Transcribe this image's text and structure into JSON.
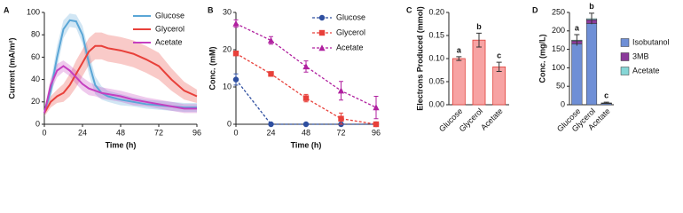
{
  "chart_data": [
    {
      "type": "line",
      "panel": "A",
      "xlabel": "Time (h)",
      "ylabel": "Current (mA/m²)",
      "x": [
        0,
        4,
        8,
        12,
        16,
        20,
        24,
        28,
        32,
        36,
        40,
        48,
        56,
        64,
        72,
        80,
        88,
        96
      ],
      "xlim": [
        0,
        96
      ],
      "xticks": [
        0,
        24,
        48,
        72,
        96
      ],
      "ylim": [
        0,
        100
      ],
      "yticks": [
        0,
        20,
        40,
        60,
        80,
        100
      ],
      "series": [
        {
          "name": "Glucose",
          "color": "#5aa6d6",
          "values": [
            10,
            30,
            60,
            85,
            93,
            92,
            80,
            55,
            35,
            28,
            25,
            22,
            20,
            18,
            17,
            16,
            15,
            15
          ],
          "errors": [
            3,
            8,
            10,
            8,
            6,
            6,
            8,
            10,
            8,
            6,
            5,
            5,
            4,
            4,
            4,
            4,
            4,
            4
          ]
        },
        {
          "name": "Glycerol",
          "color": "#e8403a",
          "values": [
            10,
            20,
            25,
            28,
            35,
            45,
            55,
            65,
            70,
            70,
            68,
            66,
            63,
            58,
            52,
            40,
            30,
            25
          ],
          "errors": [
            3,
            5,
            6,
            8,
            10,
            12,
            12,
            12,
            12,
            12,
            12,
            12,
            12,
            12,
            12,
            10,
            8,
            6
          ]
        },
        {
          "name": "Acetate",
          "color": "#c53fc0",
          "values": [
            10,
            35,
            48,
            52,
            48,
            42,
            36,
            32,
            30,
            28,
            27,
            25,
            22,
            20,
            18,
            16,
            14,
            14
          ],
          "errors": [
            3,
            6,
            6,
            5,
            5,
            6,
            6,
            6,
            5,
            5,
            5,
            5,
            5,
            4,
            4,
            4,
            4,
            4
          ]
        }
      ]
    },
    {
      "type": "scatter",
      "panel": "B",
      "xlabel": "Time (h)",
      "ylabel": "Conc. (mM)",
      "x": [
        0,
        24,
        48,
        72,
        96
      ],
      "xlim": [
        0,
        96
      ],
      "xticks": [
        0,
        24,
        48,
        72,
        96
      ],
      "ylim": [
        0,
        30
      ],
      "yticks": [
        0,
        10,
        20,
        30
      ],
      "series": [
        {
          "name": "Glucose",
          "color": "#2f4fa0",
          "marker": "circle",
          "values": [
            12,
            0,
            0,
            0,
            0
          ],
          "errors": [
            1.5,
            0,
            0,
            0,
            0
          ]
        },
        {
          "name": "Glycerol",
          "color": "#e8403a",
          "marker": "square",
          "values": [
            19,
            13.5,
            7,
            1.5,
            0
          ],
          "errors": [
            0.5,
            0.5,
            1,
            1.5,
            0.3
          ]
        },
        {
          "name": "Acetate",
          "color": "#b0209f",
          "marker": "triangle",
          "values": [
            27,
            22.5,
            15.5,
            9,
            4.5
          ],
          "errors": [
            1,
            1,
            1.5,
            2.5,
            3
          ]
        }
      ]
    },
    {
      "type": "bar",
      "panel": "C",
      "ylabel": "Electrons Produced (mmol)",
      "categories": [
        "Glucose",
        "Glycerol",
        "Acetate"
      ],
      "values": [
        0.1,
        0.14,
        0.082
      ],
      "errors": [
        0.004,
        0.015,
        0.01
      ],
      "annotations": [
        "a",
        "b",
        "c"
      ],
      "color": "#f7a3a3",
      "edge_color": "#e0403a",
      "ylim": [
        0,
        0.2
      ],
      "yticks": [
        {
          "value": 0,
          "label": "0.00"
        },
        {
          "value": 0.05,
          "label": "0.05"
        },
        {
          "value": 0.1,
          "label": "0.10"
        },
        {
          "value": 0.15,
          "label": "0.15"
        },
        {
          "value": 0.2,
          "label": "0.20"
        }
      ]
    },
    {
      "type": "stacked_bar",
      "panel": "D",
      "ylabel": "Conc. (mg/L)",
      "categories": [
        "Glucose",
        "Glycerol",
        "Acetate"
      ],
      "annotations": [
        "a",
        "b",
        "c"
      ],
      "series": [
        {
          "name": "Isobutanol",
          "color": "#6f8fd6",
          "values": [
            165,
            220,
            3
          ]
        },
        {
          "name": "3MB",
          "color": "#8b3a9a",
          "values": [
            8,
            10,
            1
          ]
        },
        {
          "name": "Acetate",
          "color": "#86d6d6",
          "values": [
            2,
            3,
            1
          ]
        }
      ],
      "errors": [
        15,
        15,
        2
      ],
      "ylim": [
        0,
        250
      ],
      "yticks": [
        0,
        50,
        100,
        150,
        200,
        250
      ]
    }
  ]
}
